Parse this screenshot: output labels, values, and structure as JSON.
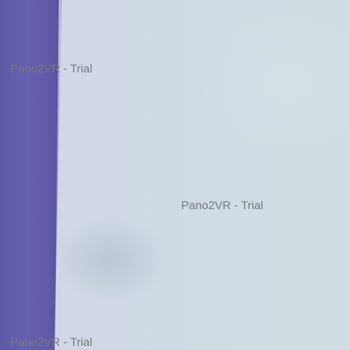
{
  "watermarks": [
    {
      "text": "Pano2VR - Trial"
    },
    {
      "text": "Pano2VR - Trial"
    },
    {
      "text": "Pano2VR - Trial"
    }
  ],
  "colors": {
    "wall": "#d0dbe2",
    "panel": "#615aa9"
  }
}
